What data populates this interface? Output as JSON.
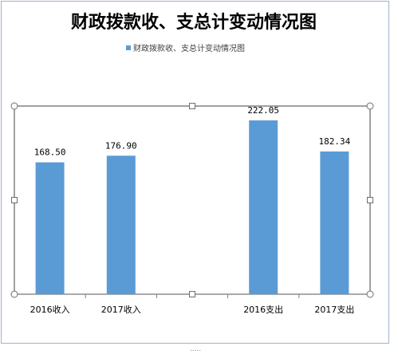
{
  "chart_data": {
    "type": "bar",
    "title": "财政拨款收、支总计变动情况图",
    "legend": [
      "财政拨款收、支总计变动情况图"
    ],
    "legend_position": "top",
    "categories": [
      "2016收入",
      "2017收入",
      "",
      "2016支出",
      "2017支出"
    ],
    "series": [
      {
        "name": "财政拨款收、支总计变动情况图",
        "values": [
          168.5,
          176.9,
          null,
          222.05,
          182.34
        ],
        "labels": [
          "168.50",
          "176.90",
          "",
          "222.05",
          "182.34"
        ]
      }
    ],
    "ylim": [
      0,
      240
    ],
    "grid": false,
    "colors": {
      "bar": "#5b9bd5",
      "frame": "#6e6e6e",
      "handle_fill": "#ffffff",
      "axis": "#7f7f7f"
    }
  }
}
